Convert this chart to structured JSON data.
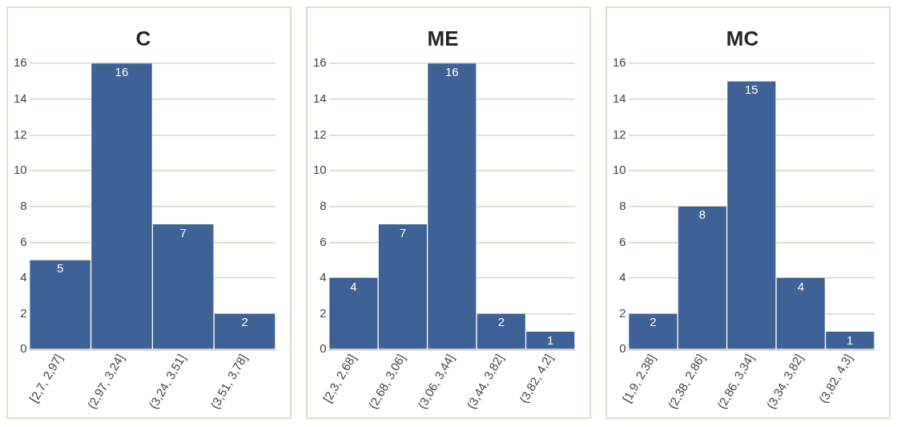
{
  "chart_data": [
    {
      "type": "bar",
      "title": "C",
      "categories": [
        "[2,7, 2,97]",
        "(2,97, 3,24]",
        "(3,24, 3,51]",
        "(3,51, 3,78]"
      ],
      "values": [
        5,
        16,
        7,
        2
      ],
      "color": "#3e6196",
      "ylim": [
        0,
        16
      ],
      "yticks": [
        0,
        2,
        4,
        6,
        8,
        10,
        12,
        14,
        16
      ],
      "grid": "y",
      "data_labels": true,
      "legend": false
    },
    {
      "type": "bar",
      "title": "ME",
      "categories": [
        "[2,3, 2,68]",
        "(2,68, 3,06]",
        "(3,06, 3,44]",
        "(3,44, 3,82]",
        "(3,82, 4,2]"
      ],
      "values": [
        4,
        7,
        16,
        2,
        1
      ],
      "color": "#3e6196",
      "ylim": [
        0,
        16
      ],
      "yticks": [
        0,
        2,
        4,
        6,
        8,
        10,
        12,
        14,
        16
      ],
      "grid": "y",
      "data_labels": true,
      "legend": false
    },
    {
      "type": "bar",
      "title": "MC",
      "categories": [
        "[1,9, 2,38]",
        "(2,38, 2,86]",
        "(2,86, 3,34]",
        "(3,34, 3,82]",
        "(3,82, 4,3]"
      ],
      "values": [
        2,
        8,
        15,
        4,
        1
      ],
      "color": "#3e6196",
      "ylim": [
        0,
        16
      ],
      "yticks": [
        0,
        2,
        4,
        6,
        8,
        10,
        12,
        14,
        16
      ],
      "grid": "y",
      "data_labels": true,
      "legend": false
    }
  ]
}
